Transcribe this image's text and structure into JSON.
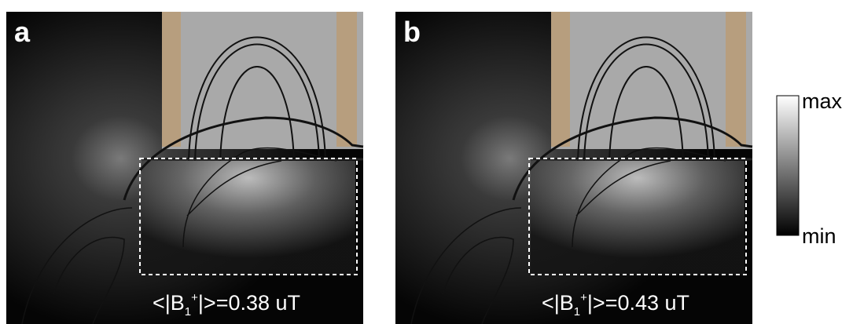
{
  "panels": [
    {
      "label": "a",
      "annotation": {
        "prefix": "<|B",
        "subscript": "1",
        "superscript": "+",
        "suffix": "|>=0.38 uT"
      }
    },
    {
      "label": "b",
      "annotation": {
        "prefix": "<|B",
        "subscript": "1",
        "superscript": "+",
        "suffix": "|>=0.43 uT"
      }
    }
  ],
  "colorbar": {
    "max": "max",
    "min": "min"
  }
}
